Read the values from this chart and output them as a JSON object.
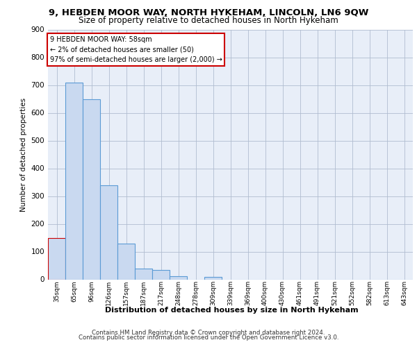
{
  "title1": "9, HEBDEN MOOR WAY, NORTH HYKEHAM, LINCOLN, LN6 9QW",
  "title2": "Size of property relative to detached houses in North Hykeham",
  "xlabel": "Distribution of detached houses by size in North Hykeham",
  "ylabel": "Number of detached properties",
  "categories": [
    "35sqm",
    "65sqm",
    "96sqm",
    "126sqm",
    "157sqm",
    "187sqm",
    "217sqm",
    "248sqm",
    "278sqm",
    "309sqm",
    "339sqm",
    "369sqm",
    "400sqm",
    "430sqm",
    "461sqm",
    "491sqm",
    "521sqm",
    "552sqm",
    "582sqm",
    "613sqm",
    "643sqm"
  ],
  "values": [
    150,
    710,
    650,
    340,
    130,
    40,
    33,
    12,
    0,
    9,
    0,
    0,
    0,
    0,
    0,
    0,
    0,
    0,
    0,
    0,
    0
  ],
  "bar_color": "#c9d9f0",
  "bar_edge_color": "#5b9bd5",
  "highlight_bar_index": 0,
  "highlight_bar_edge_color": "#cc0000",
  "annotation_box_text": "9 HEBDEN MOOR WAY: 58sqm\n← 2% of detached houses are smaller (50)\n97% of semi-detached houses are larger (2,000) →",
  "box_edge_color": "#cc0000",
  "ylim": [
    0,
    900
  ],
  "yticks": [
    0,
    100,
    200,
    300,
    400,
    500,
    600,
    700,
    800,
    900
  ],
  "footer1": "Contains HM Land Registry data © Crown copyright and database right 2024.",
  "footer2": "Contains public sector information licensed under the Open Government Licence v3.0.",
  "plot_bg_color": "#e8eef8"
}
